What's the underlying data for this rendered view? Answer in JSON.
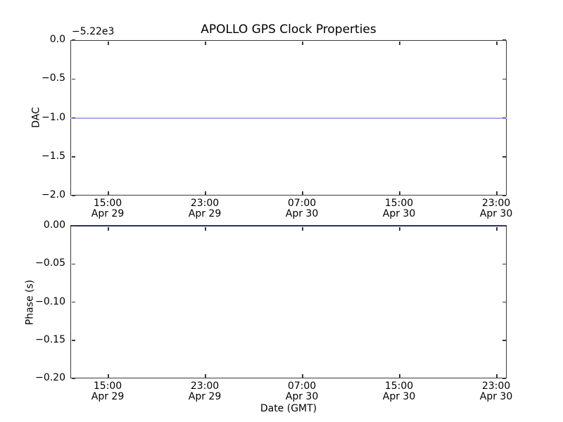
{
  "figure": {
    "title": "APOLLO GPS Clock Properties",
    "xlabel": "Date (GMT)"
  },
  "top_plot": {
    "ylabel": "DAC",
    "offset_label": "−5.22e3",
    "yticks": [
      "0.0",
      "−0.5",
      "−1.0",
      "−1.5",
      "−2.0"
    ]
  },
  "bottom_plot": {
    "ylabel": "Phase (s)",
    "yticks": [
      "0.00",
      "−0.05",
      "−0.10",
      "−0.15",
      "−0.20"
    ]
  },
  "xticks": [
    {
      "time": "15:00",
      "date": "Apr 29"
    },
    {
      "time": "23:00",
      "date": "Apr 29"
    },
    {
      "time": "07:00",
      "date": "Apr 30"
    },
    {
      "time": "15:00",
      "date": "Apr 30"
    },
    {
      "time": "23:00",
      "date": "Apr 30"
    }
  ],
  "chart_data": [
    {
      "type": "line",
      "title": "APOLLO GPS Clock Properties",
      "ylabel": "DAC",
      "y_offset_label": "−5.22e3",
      "ylim": [
        -2.0,
        0.0
      ],
      "yticks": [
        0.0,
        -0.5,
        -1.0,
        -1.5,
        -2.0
      ],
      "x_tick_labels": [
        "15:00 Apr 29",
        "23:00 Apr 29",
        "07:00 Apr 30",
        "15:00 Apr 30",
        "23:00 Apr 30"
      ],
      "grid": false,
      "legend": null,
      "series": [
        {
          "name": "DAC",
          "shape": "constant-horizontal-line",
          "value": -1.0,
          "value_with_offset": -5221.0,
          "color": "#8d92e9"
        }
      ]
    },
    {
      "type": "line",
      "title": "",
      "ylabel": "Phase (s)",
      "xlabel": "Date (GMT)",
      "ylim": [
        -0.2,
        0.0
      ],
      "yticks": [
        0.0,
        -0.05,
        -0.1,
        -0.15,
        -0.2
      ],
      "x_tick_labels": [
        "15:00 Apr 29",
        "23:00 Apr 29",
        "07:00 Apr 30",
        "15:00 Apr 30",
        "23:00 Apr 30"
      ],
      "grid": false,
      "legend": null,
      "series": [
        {
          "name": "Phase",
          "shape": "constant-horizontal-line",
          "value": 0.0,
          "color": "#2e2e60"
        }
      ]
    }
  ]
}
